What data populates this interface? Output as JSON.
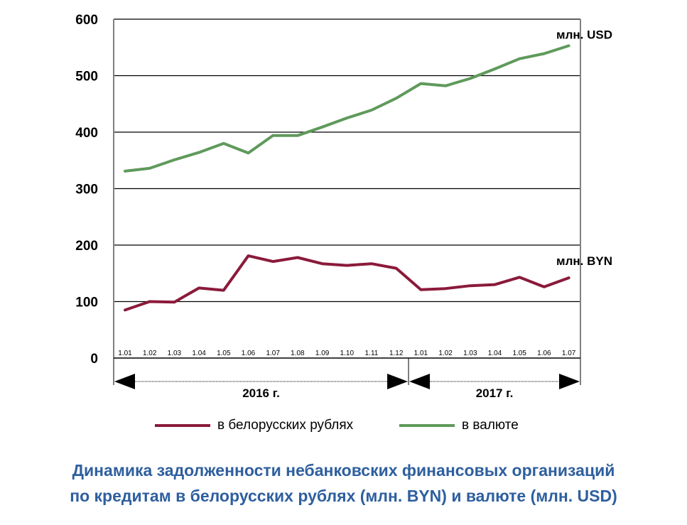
{
  "chart_data": {
    "type": "line",
    "title": "",
    "xlabel": "",
    "ylabel": "",
    "ylim": [
      0,
      600
    ],
    "yticks": [
      "0",
      "100",
      "200",
      "300",
      "400",
      "500",
      "600"
    ],
    "categories": [
      "1.01",
      "1.02",
      "1.03",
      "1.04",
      "1.05",
      "1.06",
      "1.07",
      "1.08",
      "1.09",
      "1.10",
      "1.11",
      "1.12",
      "1.01",
      "1.02",
      "1.03",
      "1.04",
      "1.05",
      "1.06",
      "1.07"
    ],
    "year_groups": [
      {
        "label": "2016 г.",
        "count": 12
      },
      {
        "label": "2017 г.",
        "count": 7
      }
    ],
    "grid": true,
    "legend_position": "bottom",
    "series": [
      {
        "name": "в белорусских рублях",
        "color": "#8b1a3a",
        "end_label": "млн. BYN",
        "values": [
          85,
          100,
          99,
          124,
          120,
          181,
          171,
          178,
          167,
          164,
          167,
          159,
          121,
          123,
          128,
          130,
          143,
          126,
          142
        ]
      },
      {
        "name": "в валюте",
        "color": "#5f9a5c",
        "end_label": "млн. USD",
        "values": [
          331,
          336,
          351,
          364,
          380,
          363,
          394,
          394,
          409,
          425,
          439,
          460,
          486,
          482,
          495,
          512,
          530,
          539,
          553
        ]
      }
    ]
  },
  "caption": {
    "line1": "Динамика задолженности небанковских финансовых организаций",
    "line2": "по кредитам  в белорусских рублях (млн. BYN) и валюте (млн. USD)"
  },
  "colors": {
    "caption": "#2e5f9e",
    "grid": "#000000"
  }
}
